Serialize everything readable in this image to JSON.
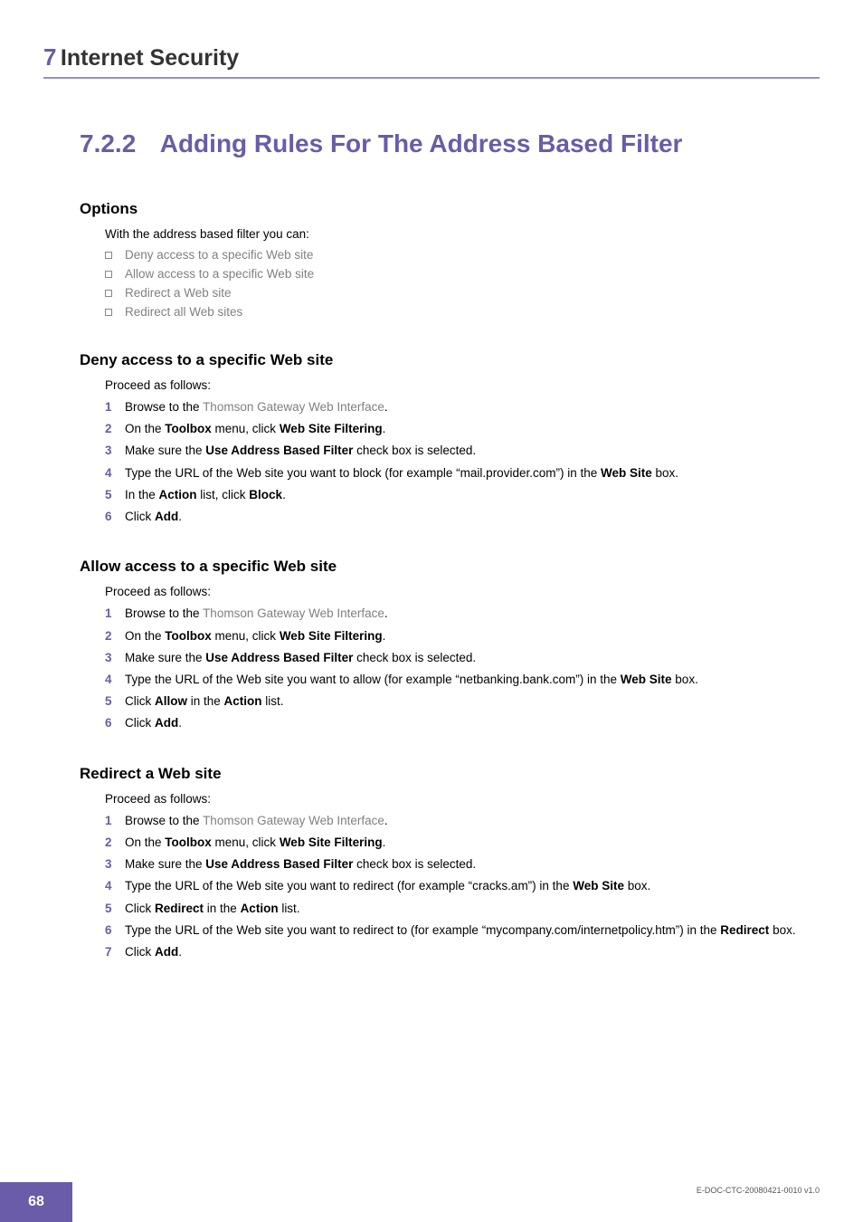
{
  "colors": {
    "accent": "#6a5ca8",
    "rule": "#9b8ec4",
    "link_grey": "#808080",
    "body_text": "#000000",
    "bullet_border": "#888888",
    "page_bg": "#ffffff",
    "footer_text": "#ffffff"
  },
  "typography": {
    "chapter_num_size": 26,
    "chapter_title_size": 25,
    "section_size": 28,
    "heading_size": 17,
    "body_size": 13.5,
    "footer_id_size": 9
  },
  "chapter": {
    "num": "7",
    "title": "Internet Security"
  },
  "section": {
    "num": "7.2.2",
    "title": "Adding Rules For The Address Based Filter"
  },
  "options": {
    "heading": "Options",
    "intro": "With the address based filter you can:",
    "items": [
      "Deny access to a specific Web site",
      "Allow access to a specific Web site",
      "Redirect a Web site",
      "Redirect all Web sites"
    ]
  },
  "deny": {
    "heading": "Deny access to a specific Web site",
    "intro": "Proceed as follows:",
    "steps": {
      "s1_pre": "Browse to the ",
      "s1_link": "Thomson Gateway Web Interface",
      "s1_post": ".",
      "s2_a": "On the ",
      "s2_b": "Toolbox",
      "s2_c": " menu, click ",
      "s2_d": "Web Site Filtering",
      "s2_e": ".",
      "s3_a": "Make sure the ",
      "s3_b": "Use Address Based Filter",
      "s3_c": " check box is selected.",
      "s4_a": "Type the URL of the Web site you want to block (for example “mail.provider.com”) in the ",
      "s4_b": "Web Site",
      "s4_c": " box.",
      "s5_a": "In the ",
      "s5_b": "Action",
      "s5_c": " list, click ",
      "s5_d": "Block",
      "s5_e": ".",
      "s6_a": "Click ",
      "s6_b": "Add",
      "s6_c": "."
    }
  },
  "allow": {
    "heading": "Allow access to a specific Web site",
    "intro": "Proceed as follows:",
    "steps": {
      "s1_pre": "Browse to the ",
      "s1_link": "Thomson Gateway Web Interface",
      "s1_post": ".",
      "s2_a": "On the ",
      "s2_b": "Toolbox",
      "s2_c": " menu, click ",
      "s2_d": "Web Site Filtering",
      "s2_e": ".",
      "s3_a": "Make sure the ",
      "s3_b": "Use Address Based Filter",
      "s3_c": " check box is selected.",
      "s4_a": "Type the URL of the Web site you want to allow (for example “netbanking.bank.com”) in the ",
      "s4_b": "Web Site",
      "s4_c": " box.",
      "s5_a": "Click ",
      "s5_b": "Allow",
      "s5_c": " in the ",
      "s5_d": "Action",
      "s5_e": " list.",
      "s6_a": "Click ",
      "s6_b": "Add",
      "s6_c": "."
    }
  },
  "redirect": {
    "heading": "Redirect a Web site",
    "intro": "Proceed as follows:",
    "steps": {
      "s1_pre": "Browse to the ",
      "s1_link": "Thomson Gateway Web Interface",
      "s1_post": ".",
      "s2_a": "On the ",
      "s2_b": "Toolbox",
      "s2_c": " menu, click ",
      "s2_d": "Web Site Filtering",
      "s2_e": ".",
      "s3_a": "Make sure the ",
      "s3_b": "Use Address Based Filter",
      "s3_c": " check box is selected.",
      "s4_a": "Type the URL of the Web site you want to redirect (for example “cracks.am”) in the ",
      "s4_b": "Web Site",
      "s4_c": " box.",
      "s5_a": "Click ",
      "s5_b": "Redirect",
      "s5_c": " in the ",
      "s5_d": "Action",
      "s5_e": " list.",
      "s6_a": "Type the URL of the Web site you want to redirect to (for example “mycompany.com/internetpolicy.htm”) in the ",
      "s6_b": "Redirect",
      "s6_c": " box.",
      "s7_a": "Click ",
      "s7_b": "Add",
      "s7_c": "."
    }
  },
  "footer": {
    "page_num": "68",
    "doc_id": "E-DOC-CTC-20080421-0010 v1.0"
  }
}
